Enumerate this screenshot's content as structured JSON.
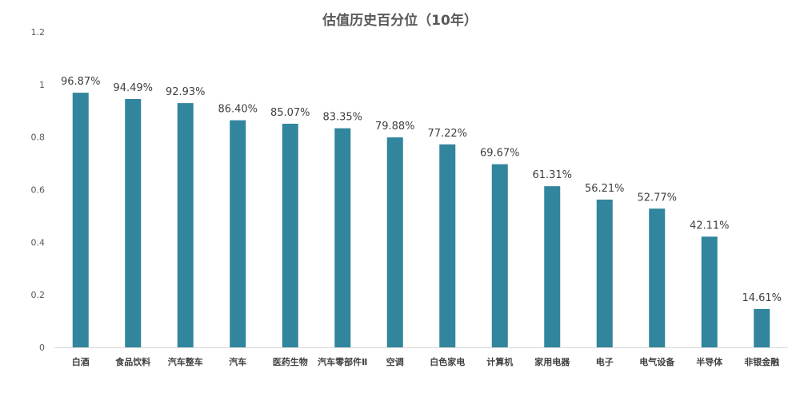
{
  "chart_data": {
    "type": "bar",
    "title": "估值历史百分位（10年）",
    "xlabel": "",
    "ylabel": "",
    "ylim": [
      0,
      1.2
    ],
    "yticks": [
      0,
      0.2,
      0.4,
      0.6,
      0.8,
      1,
      1.2
    ],
    "ytick_labels": [
      "0",
      "0.2",
      "0.4",
      "0.6",
      "0.8",
      "1",
      "1.2"
    ],
    "grid": false,
    "legend": "none",
    "bar_color": "#31859c",
    "categories": [
      "白酒",
      "食品饮料",
      "汽车整车",
      "汽车",
      "医药生物",
      "汽车零部件Ⅱ",
      "空调",
      "白色家电",
      "计算机",
      "家用电器",
      "电子",
      "电气设备",
      "半导体",
      "非银金融"
    ],
    "values": [
      0.9687,
      0.9449,
      0.9293,
      0.864,
      0.8507,
      0.8335,
      0.7988,
      0.7722,
      0.6967,
      0.6131,
      0.5621,
      0.5277,
      0.4211,
      0.1461
    ],
    "data_labels": [
      "96.87%",
      "94.49%",
      "92.93%",
      "86.40%",
      "85.07%",
      "83.35%",
      "79.88%",
      "77.22%",
      "69.67%",
      "61.31%",
      "56.21%",
      "52.77%",
      "42.11%",
      "14.61%"
    ]
  }
}
